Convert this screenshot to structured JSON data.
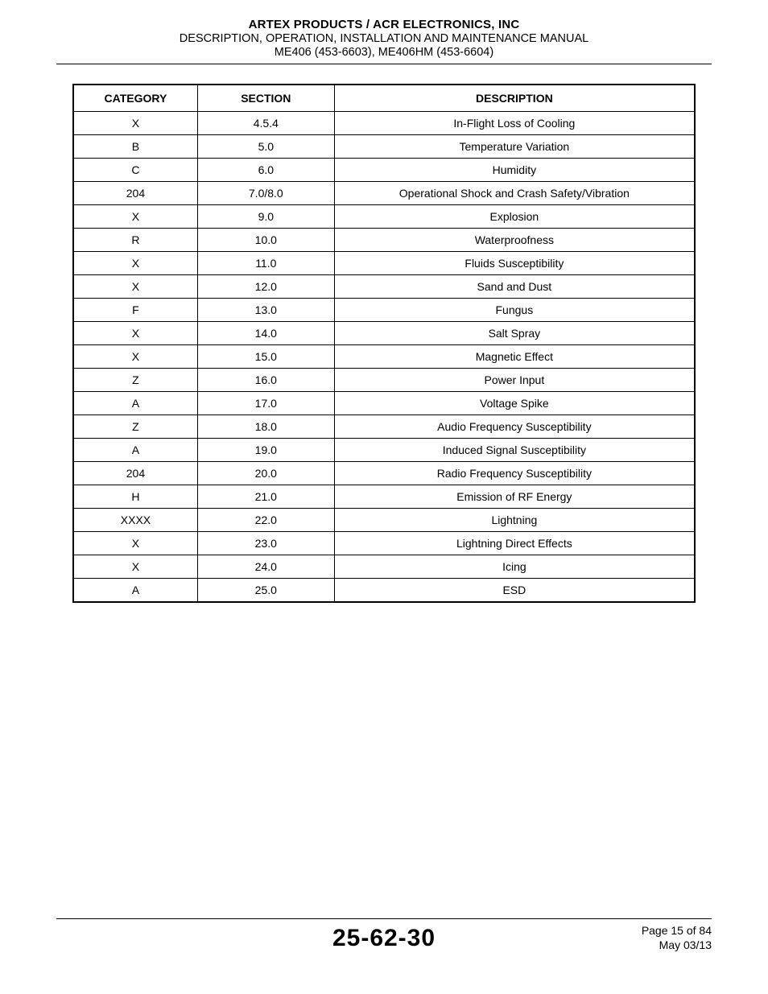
{
  "header": {
    "company": "ARTEX PRODUCTS / ACR ELECTRONICS, INC",
    "subtitle": "DESCRIPTION, OPERATION, INSTALLATION AND MAINTENANCE MANUAL",
    "models": "ME406 (453-6603), ME406HM (453-6604)"
  },
  "table": {
    "columns": [
      "CATEGORY",
      "SECTION",
      "DESCRIPTION"
    ],
    "rows": [
      [
        "X",
        "4.5.4",
        "In-Flight Loss of Cooling"
      ],
      [
        "B",
        "5.0",
        "Temperature Variation"
      ],
      [
        "C",
        "6.0",
        "Humidity"
      ],
      [
        "204",
        "7.0/8.0",
        "Operational Shock and Crash Safety/Vibration"
      ],
      [
        "X",
        "9.0",
        "Explosion"
      ],
      [
        "R",
        "10.0",
        "Waterproofness"
      ],
      [
        "X",
        "11.0",
        "Fluids Susceptibility"
      ],
      [
        "X",
        "12.0",
        "Sand and Dust"
      ],
      [
        "F",
        "13.0",
        "Fungus"
      ],
      [
        "X",
        "14.0",
        "Salt Spray"
      ],
      [
        "X",
        "15.0",
        "Magnetic Effect"
      ],
      [
        "Z",
        "16.0",
        "Power Input"
      ],
      [
        "A",
        "17.0",
        "Voltage Spike"
      ],
      [
        "Z",
        "18.0",
        "Audio Frequency Susceptibility"
      ],
      [
        "A",
        "19.0",
        "Induced Signal Susceptibility"
      ],
      [
        "204",
        "20.0",
        "Radio Frequency Susceptibility"
      ],
      [
        "H",
        "21.0",
        "Emission of RF Energy"
      ],
      [
        "XXXX",
        "22.0",
        "Lightning"
      ],
      [
        "X",
        "23.0",
        "Lightning Direct Effects"
      ],
      [
        "X",
        "24.0",
        "Icing"
      ],
      [
        "A",
        "25.0",
        "ESD"
      ]
    ]
  },
  "footer": {
    "docnum": "25-62-30",
    "page": "Page 15 of 84",
    "date": "May 03/13"
  }
}
